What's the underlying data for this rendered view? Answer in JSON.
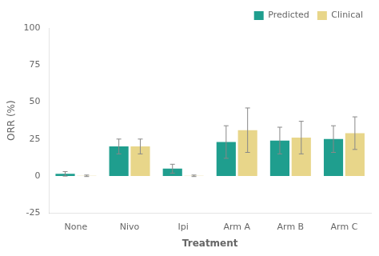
{
  "chart_data": {
    "type": "bar",
    "categories": [
      "None",
      "Nivo",
      "Ipi",
      "Arm A",
      "Arm B",
      "Arm C"
    ],
    "series": [
      {
        "name": "Predicted",
        "color": "#1f9e8e",
        "values": [
          1.5,
          20,
          5,
          23,
          24,
          25
        ],
        "errors": [
          1.5,
          5,
          3,
          11,
          9,
          9
        ]
      },
      {
        "name": "Clinical",
        "color": "#e8d68a",
        "values": [
          0.2,
          20,
          0.2,
          31,
          26,
          29
        ],
        "errors": [
          0.5,
          5,
          0.5,
          15,
          11,
          11
        ]
      }
    ],
    "xlabel": "Treatment",
    "ylabel": "ORR (%)",
    "ylim": [
      -25,
      100
    ],
    "yticks": [
      -25,
      0,
      25,
      50,
      75,
      100
    ],
    "grid": false,
    "legend": "upper right"
  }
}
